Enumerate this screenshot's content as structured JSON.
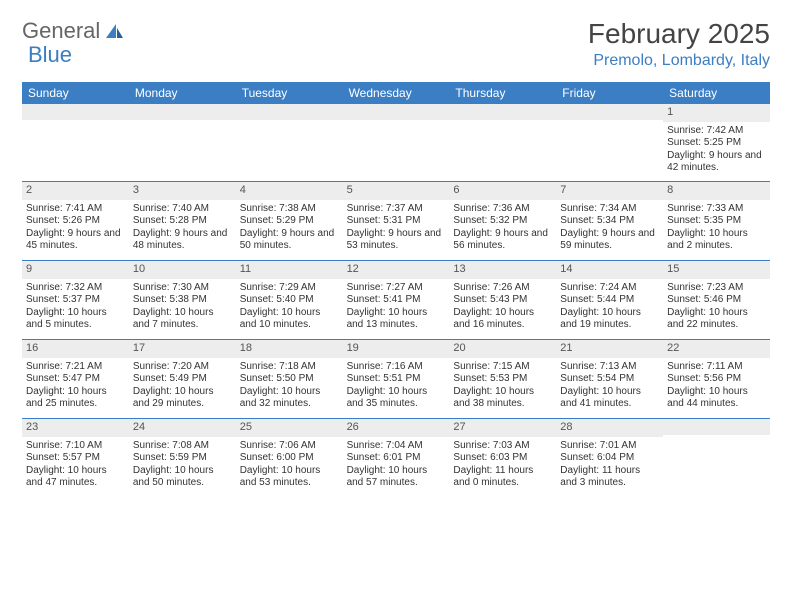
{
  "logo": {
    "text1": "General",
    "text2": "Blue"
  },
  "title": "February 2025",
  "location": "Premolo, Lombardy, Italy",
  "colors": {
    "header_bg": "#3b7ec4",
    "header_fg": "#ffffff",
    "daynum_bg": "#ededed",
    "rule": "#3b7ec4",
    "text": "#333333"
  },
  "day_labels": [
    "Sunday",
    "Monday",
    "Tuesday",
    "Wednesday",
    "Thursday",
    "Friday",
    "Saturday"
  ],
  "weeks": [
    [
      {
        "n": "",
        "sr": "",
        "ss": "",
        "dl": ""
      },
      {
        "n": "",
        "sr": "",
        "ss": "",
        "dl": ""
      },
      {
        "n": "",
        "sr": "",
        "ss": "",
        "dl": ""
      },
      {
        "n": "",
        "sr": "",
        "ss": "",
        "dl": ""
      },
      {
        "n": "",
        "sr": "",
        "ss": "",
        "dl": ""
      },
      {
        "n": "",
        "sr": "",
        "ss": "",
        "dl": ""
      },
      {
        "n": "1",
        "sr": "Sunrise: 7:42 AM",
        "ss": "Sunset: 5:25 PM",
        "dl": "Daylight: 9 hours and 42 minutes."
      }
    ],
    [
      {
        "n": "2",
        "sr": "Sunrise: 7:41 AM",
        "ss": "Sunset: 5:26 PM",
        "dl": "Daylight: 9 hours and 45 minutes."
      },
      {
        "n": "3",
        "sr": "Sunrise: 7:40 AM",
        "ss": "Sunset: 5:28 PM",
        "dl": "Daylight: 9 hours and 48 minutes."
      },
      {
        "n": "4",
        "sr": "Sunrise: 7:38 AM",
        "ss": "Sunset: 5:29 PM",
        "dl": "Daylight: 9 hours and 50 minutes."
      },
      {
        "n": "5",
        "sr": "Sunrise: 7:37 AM",
        "ss": "Sunset: 5:31 PM",
        "dl": "Daylight: 9 hours and 53 minutes."
      },
      {
        "n": "6",
        "sr": "Sunrise: 7:36 AM",
        "ss": "Sunset: 5:32 PM",
        "dl": "Daylight: 9 hours and 56 minutes."
      },
      {
        "n": "7",
        "sr": "Sunrise: 7:34 AM",
        "ss": "Sunset: 5:34 PM",
        "dl": "Daylight: 9 hours and 59 minutes."
      },
      {
        "n": "8",
        "sr": "Sunrise: 7:33 AM",
        "ss": "Sunset: 5:35 PM",
        "dl": "Daylight: 10 hours and 2 minutes."
      }
    ],
    [
      {
        "n": "9",
        "sr": "Sunrise: 7:32 AM",
        "ss": "Sunset: 5:37 PM",
        "dl": "Daylight: 10 hours and 5 minutes."
      },
      {
        "n": "10",
        "sr": "Sunrise: 7:30 AM",
        "ss": "Sunset: 5:38 PM",
        "dl": "Daylight: 10 hours and 7 minutes."
      },
      {
        "n": "11",
        "sr": "Sunrise: 7:29 AM",
        "ss": "Sunset: 5:40 PM",
        "dl": "Daylight: 10 hours and 10 minutes."
      },
      {
        "n": "12",
        "sr": "Sunrise: 7:27 AM",
        "ss": "Sunset: 5:41 PM",
        "dl": "Daylight: 10 hours and 13 minutes."
      },
      {
        "n": "13",
        "sr": "Sunrise: 7:26 AM",
        "ss": "Sunset: 5:43 PM",
        "dl": "Daylight: 10 hours and 16 minutes."
      },
      {
        "n": "14",
        "sr": "Sunrise: 7:24 AM",
        "ss": "Sunset: 5:44 PM",
        "dl": "Daylight: 10 hours and 19 minutes."
      },
      {
        "n": "15",
        "sr": "Sunrise: 7:23 AM",
        "ss": "Sunset: 5:46 PM",
        "dl": "Daylight: 10 hours and 22 minutes."
      }
    ],
    [
      {
        "n": "16",
        "sr": "Sunrise: 7:21 AM",
        "ss": "Sunset: 5:47 PM",
        "dl": "Daylight: 10 hours and 25 minutes."
      },
      {
        "n": "17",
        "sr": "Sunrise: 7:20 AM",
        "ss": "Sunset: 5:49 PM",
        "dl": "Daylight: 10 hours and 29 minutes."
      },
      {
        "n": "18",
        "sr": "Sunrise: 7:18 AM",
        "ss": "Sunset: 5:50 PM",
        "dl": "Daylight: 10 hours and 32 minutes."
      },
      {
        "n": "19",
        "sr": "Sunrise: 7:16 AM",
        "ss": "Sunset: 5:51 PM",
        "dl": "Daylight: 10 hours and 35 minutes."
      },
      {
        "n": "20",
        "sr": "Sunrise: 7:15 AM",
        "ss": "Sunset: 5:53 PM",
        "dl": "Daylight: 10 hours and 38 minutes."
      },
      {
        "n": "21",
        "sr": "Sunrise: 7:13 AM",
        "ss": "Sunset: 5:54 PM",
        "dl": "Daylight: 10 hours and 41 minutes."
      },
      {
        "n": "22",
        "sr": "Sunrise: 7:11 AM",
        "ss": "Sunset: 5:56 PM",
        "dl": "Daylight: 10 hours and 44 minutes."
      }
    ],
    [
      {
        "n": "23",
        "sr": "Sunrise: 7:10 AM",
        "ss": "Sunset: 5:57 PM",
        "dl": "Daylight: 10 hours and 47 minutes."
      },
      {
        "n": "24",
        "sr": "Sunrise: 7:08 AM",
        "ss": "Sunset: 5:59 PM",
        "dl": "Daylight: 10 hours and 50 minutes."
      },
      {
        "n": "25",
        "sr": "Sunrise: 7:06 AM",
        "ss": "Sunset: 6:00 PM",
        "dl": "Daylight: 10 hours and 53 minutes."
      },
      {
        "n": "26",
        "sr": "Sunrise: 7:04 AM",
        "ss": "Sunset: 6:01 PM",
        "dl": "Daylight: 10 hours and 57 minutes."
      },
      {
        "n": "27",
        "sr": "Sunrise: 7:03 AM",
        "ss": "Sunset: 6:03 PM",
        "dl": "Daylight: 11 hours and 0 minutes."
      },
      {
        "n": "28",
        "sr": "Sunrise: 7:01 AM",
        "ss": "Sunset: 6:04 PM",
        "dl": "Daylight: 11 hours and 3 minutes."
      },
      {
        "n": "",
        "sr": "",
        "ss": "",
        "dl": ""
      }
    ]
  ]
}
